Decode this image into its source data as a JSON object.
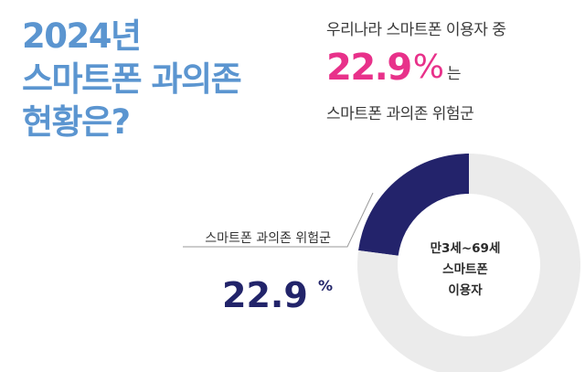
{
  "headline": {
    "lines": [
      "2024년",
      "스마트폰 과의존",
      "현황은?"
    ]
  },
  "summary": {
    "intro": "우리나라 스마트폰 이용자 중",
    "value": "22.9",
    "unit": "%",
    "suffix": "는",
    "outro": "스마트폰 과의존 위험군"
  },
  "chart_data": {
    "type": "pie",
    "variant": "donut",
    "categories": [
      "스마트폰 과의존 위험군",
      ""
    ],
    "values": [
      22.9,
      77.1
    ],
    "unit": "%",
    "colors": [
      "#23236b",
      "#ebebeb"
    ],
    "center_label": [
      "만3세~69세",
      "스마트폰",
      "이용자"
    ],
    "callout": {
      "label": "스마트폰 과의존 위험군",
      "value": "22.9",
      "unit": "%"
    }
  }
}
